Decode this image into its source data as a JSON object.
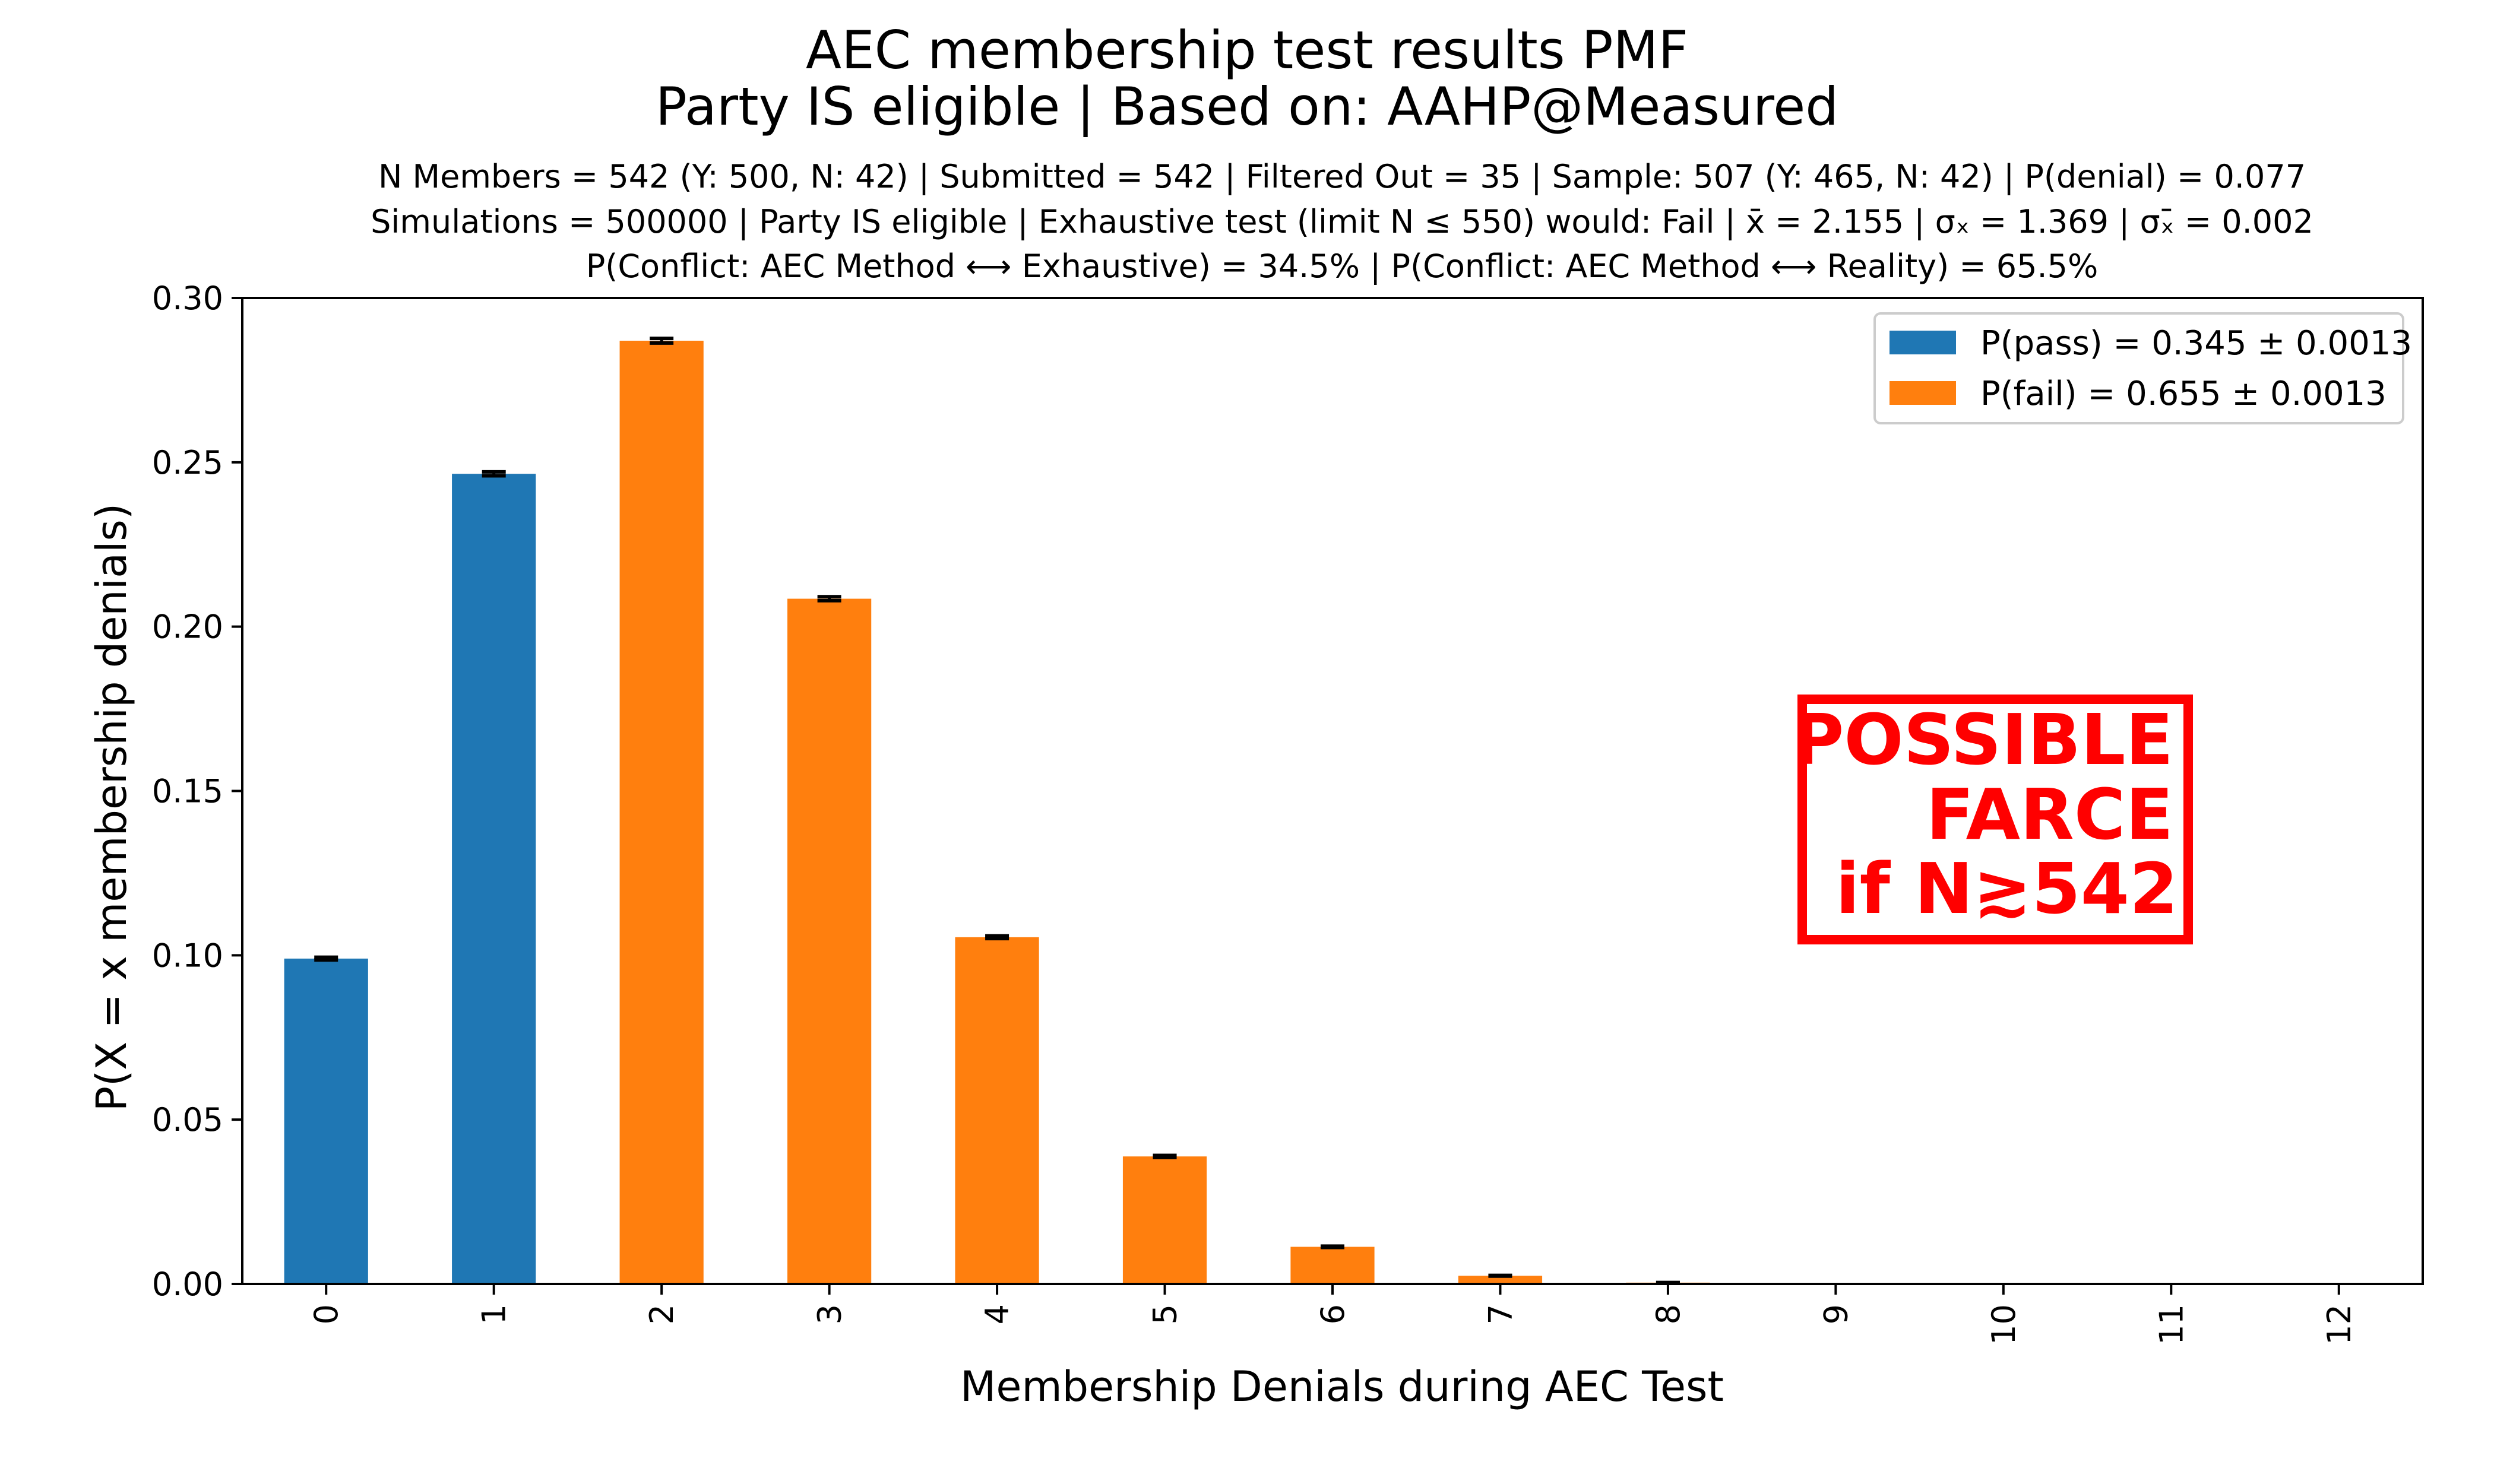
{
  "title_lines": [
    "AEC membership test results PMF",
    "Party IS eligible | Based on: AAHP@Measured"
  ],
  "subtitle_lines": [
    "N Members = 542 (Y: 500, N: 42) | Submitted = 542 | Filtered Out = 35 | Sample: 507 (Y: 465, N: 42) | P(denial) = 0.077",
    "Simulations = 500000 | Party IS eligible | Exhaustive test (limit N ≤ 550) would: Fail | x̄ = 2.155 | σₓ = 1.369 | σₓ̄ = 0.002",
    "P(Conflict: AEC Method ⟷ Exhaustive) = 34.5% | P(Conflict: AEC Method ⟷ Reality) = 65.5%"
  ],
  "colors": {
    "pass": "#1f77b4",
    "fail": "#ff7f0e",
    "stamp": "#ff0000",
    "axis": "#000000"
  },
  "chart_data": {
    "type": "bar",
    "xlabel": "Membership Denials during AEC Test",
    "ylabel": "P(X = x membership denials)",
    "ylim": [
      0,
      0.3
    ],
    "yticks": [
      "0.00",
      "0.05",
      "0.10",
      "0.15",
      "0.20",
      "0.25",
      "0.30"
    ],
    "categories": [
      "0",
      "1",
      "2",
      "3",
      "4",
      "5",
      "6",
      "7",
      "8",
      "9",
      "10",
      "11",
      "12"
    ],
    "values": [
      0.099,
      0.2465,
      0.287,
      0.2085,
      0.1055,
      0.0388,
      0.0113,
      0.0025,
      0.0004,
      5e-05,
      0.0,
      0.0,
      0.0
    ],
    "errors": [
      0.0004,
      0.0006,
      0.0007,
      0.0006,
      0.0004,
      0.0003,
      0.0002,
      0.0001,
      0.0,
      0.0,
      0.0,
      0.0,
      0.0
    ],
    "outcome": [
      "pass",
      "pass",
      "fail",
      "fail",
      "fail",
      "fail",
      "fail",
      "fail",
      "fail",
      "fail",
      "fail",
      "fail",
      "fail"
    ],
    "legend_position": "top-right",
    "legend": [
      {
        "key": "pass",
        "label": "P(pass) = 0.345 ± 0.0013"
      },
      {
        "key": "fail",
        "label": "P(fail) = 0.655 ± 0.0013"
      }
    ],
    "annotation_lines": [
      "POSSIBLE",
      "FARCE",
      "if N≳542"
    ]
  }
}
